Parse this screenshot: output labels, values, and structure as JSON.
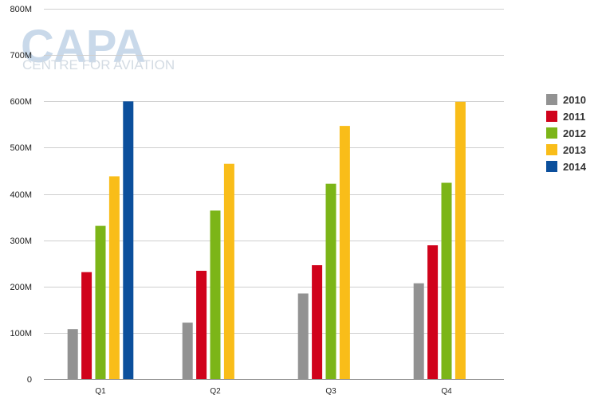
{
  "watermark": {
    "logo_text": "CAPA",
    "tagline": "CENTRE FOR AVIATION"
  },
  "colors": {
    "gridline": "#cfcfcf",
    "axis": "#999999",
    "watermark": "#c9d9ea"
  },
  "chart_data": {
    "type": "bar",
    "title": "",
    "xlabel": "",
    "ylabel": "",
    "categories": [
      "Q1",
      "Q2",
      "Q3",
      "Q4"
    ],
    "ylim": [
      0,
      800000000
    ],
    "yticks": [
      {
        "value": 0,
        "label": "0"
      },
      {
        "value": 100000000,
        "label": "100M"
      },
      {
        "value": 200000000,
        "label": "200M"
      },
      {
        "value": 300000000,
        "label": "300M"
      },
      {
        "value": 400000000,
        "label": "400M"
      },
      {
        "value": 500000000,
        "label": "500M"
      },
      {
        "value": 600000000,
        "label": "600M"
      },
      {
        "value": 700000000,
        "label": "700M"
      },
      {
        "value": 800000000,
        "label": "800M"
      }
    ],
    "grid": true,
    "legend_position": "right",
    "series": [
      {
        "name": "2010",
        "color": "#929292",
        "values": [
          108000000,
          122000000,
          185000000,
          207000000
        ]
      },
      {
        "name": "2011",
        "color": "#d0021b",
        "values": [
          231000000,
          234000000,
          246000000,
          289000000
        ]
      },
      {
        "name": "2012",
        "color": "#7cb518",
        "values": [
          331000000,
          364000000,
          422000000,
          424000000
        ]
      },
      {
        "name": "2013",
        "color": "#f9bd19",
        "values": [
          438000000,
          465000000,
          547000000,
          599000000
        ]
      },
      {
        "name": "2014",
        "color": "#0b4f9c",
        "values": [
          600000000,
          null,
          null,
          null
        ]
      }
    ]
  }
}
